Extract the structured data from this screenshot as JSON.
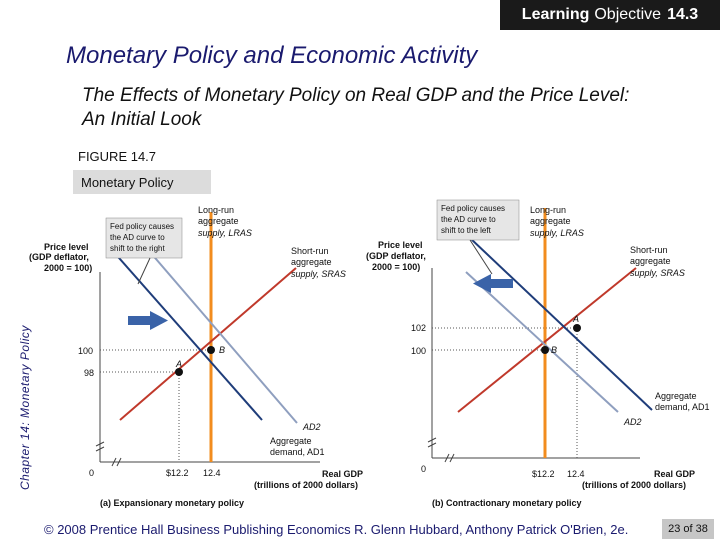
{
  "header": {
    "lo_bold": "Learning",
    "lo_text": "Objective",
    "lo_num": "14.3",
    "title": "Monetary Policy and Economic Activity",
    "subtitle": "The Effects of Monetary Policy on Real GDP and the Price Level:  An Initial Look",
    "figure_label": "FIGURE 14.7",
    "figure_tab": "Monetary Policy"
  },
  "sidebar": {
    "chapter_label": "Chapter 14:  Monetary Policy"
  },
  "footer": {
    "credit": "© 2008 Prentice Hall Business Publishing   Economics  R. Glenn Hubbard, Anthony Patrick O'Brien, 2e.",
    "page": "23 of 38"
  },
  "colors": {
    "lras": "#f28c1e",
    "ad_dark": "#1f3d7a",
    "ad_light": "#8f9fbf",
    "arrow": "#3a63a8",
    "callout": "#e6e6e6"
  },
  "left_panel": {
    "caption": "(a) Expansionary monetary policy",
    "ylabel_1": "Price level",
    "ylabel_2": "(GDP deflator,",
    "ylabel_3": "2000 = 100)",
    "xlabel_1": "Real GDP",
    "xlabel_2": "(trillions of 2000 dollars)",
    "origin": "0",
    "y_ticks": [
      "100",
      "98"
    ],
    "x_ticks": [
      "$12.2",
      "12.4"
    ],
    "callout_1": "Fed policy causes",
    "callout_2": "the AD curve to",
    "callout_3": "shift to the right",
    "lras_1": "Long-run",
    "lras_2": "aggregate",
    "lras_3": "supply, LRAS",
    "sras_1": "Short-run",
    "sras_2": "aggregate",
    "sras_3": "supply, SRAS",
    "ad1_1": "Aggregate",
    "ad1_2": "demand, AD1",
    "ad2": "AD2",
    "point_a": "A",
    "point_b": "B"
  },
  "right_panel": {
    "caption": "(b) Contractionary monetary policy",
    "ylabel_1": "Price level",
    "ylabel_2": "(GDP deflator,",
    "ylabel_3": "2000 = 100)",
    "xlabel_1": "Real GDP",
    "xlabel_2": "(trillions of 2000 dollars)",
    "origin": "0",
    "y_ticks": [
      "102",
      "100"
    ],
    "x_ticks": [
      "$12.2",
      "12.4"
    ],
    "callout_1": "Fed policy causes",
    "callout_2": "the AD curve to",
    "callout_3": "shift to the left",
    "lras_1": "Long-run",
    "lras_2": "aggregate",
    "lras_3": "supply, LRAS",
    "sras_1": "Short-run",
    "sras_2": "aggregate",
    "sras_3": "supply, SRAS",
    "ad1_1": "Aggregate",
    "ad1_2": "demand, AD1",
    "ad2": "AD2",
    "point_a": "A",
    "point_b": "B"
  }
}
